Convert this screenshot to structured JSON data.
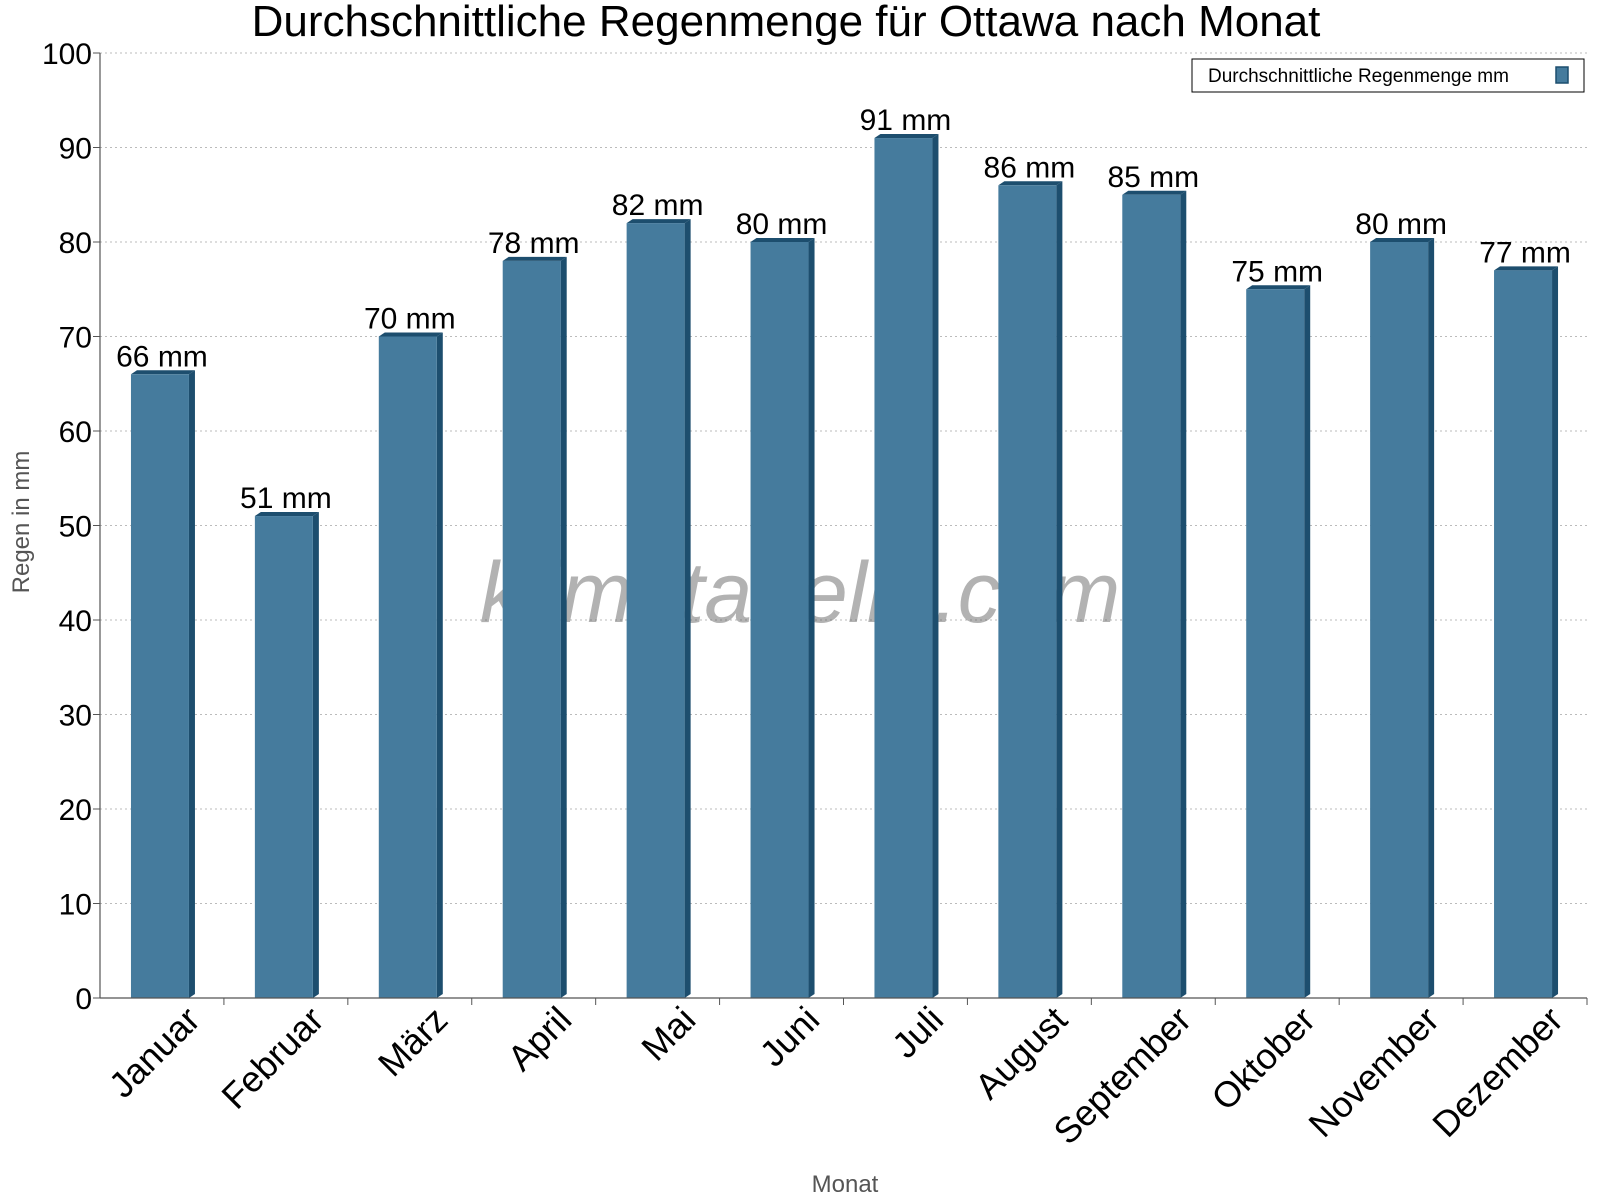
{
  "chart_data": {
    "type": "bar",
    "title": "Durchschnittliche Regenmenge für Ottawa nach Monat",
    "xlabel": "Monat",
    "ylabel": "Regen in mm",
    "ylim": [
      0,
      100
    ],
    "yticks": [
      0,
      10,
      20,
      30,
      40,
      50,
      60,
      70,
      80,
      90,
      100
    ],
    "grid": true,
    "legend_position": "top-right",
    "categories": [
      "Januar",
      "Februar",
      "März",
      "April",
      "Mai",
      "Juni",
      "Juli",
      "August",
      "September",
      "Oktober",
      "November",
      "Dezember"
    ],
    "series": [
      {
        "name": "Durchschnittliche Regenmenge mm",
        "values": [
          66,
          51,
          70,
          78,
          82,
          80,
          91,
          86,
          85,
          75,
          80,
          77
        ],
        "data_labels": [
          "66 mm",
          "51 mm",
          "70 mm",
          "78 mm",
          "82 mm",
          "80 mm",
          "91 mm",
          "86 mm",
          "85 mm",
          "75 mm",
          "80 mm",
          "77 mm"
        ]
      }
    ],
    "watermark": "klimatabelle.com",
    "colors": {
      "bar": "#457b9d",
      "bar_side": "#1d4e6e",
      "grid": "#bbbbbb",
      "axis": "#555555"
    }
  }
}
